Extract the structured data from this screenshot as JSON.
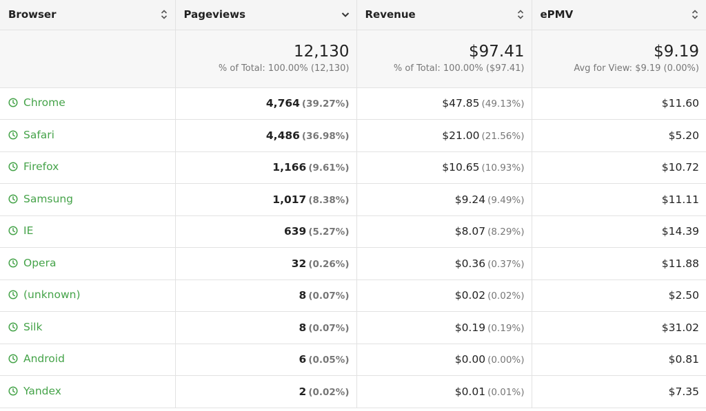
{
  "columns": [
    {
      "label": "Browser",
      "sort": "both"
    },
    {
      "label": "Pageviews",
      "sort": "down"
    },
    {
      "label": "Revenue",
      "sort": "both"
    },
    {
      "label": "ePMV",
      "sort": "both"
    }
  ],
  "totals": {
    "pageviews": {
      "value": "12,130",
      "sub": "% of Total: 100.00% (12,130)"
    },
    "revenue": {
      "value": "$97.41",
      "sub": "% of Total: 100.00% ($97.41)"
    },
    "epmv": {
      "value": "$9.19",
      "sub": "Avg for View: $9.19 (0.00%)"
    }
  },
  "rows": [
    {
      "browser": "Chrome",
      "pageviews": "4,764",
      "pageviews_pct": "(39.27%)",
      "revenue": "$47.85",
      "revenue_pct": "(49.13%)",
      "epmv": "$11.60"
    },
    {
      "browser": "Safari",
      "pageviews": "4,486",
      "pageviews_pct": "(36.98%)",
      "revenue": "$21.00",
      "revenue_pct": "(21.56%)",
      "epmv": "$5.20"
    },
    {
      "browser": "Firefox",
      "pageviews": "1,166",
      "pageviews_pct": "(9.61%)",
      "revenue": "$10.65",
      "revenue_pct": "(10.93%)",
      "epmv": "$10.72"
    },
    {
      "browser": "Samsung",
      "pageviews": "1,017",
      "pageviews_pct": "(8.38%)",
      "revenue": "$9.24",
      "revenue_pct": "(9.49%)",
      "epmv": "$11.11"
    },
    {
      "browser": "IE",
      "pageviews": "639",
      "pageviews_pct": "(5.27%)",
      "revenue": "$8.07",
      "revenue_pct": "(8.29%)",
      "epmv": "$14.39"
    },
    {
      "browser": "Opera",
      "pageviews": "32",
      "pageviews_pct": "(0.26%)",
      "revenue": "$0.36",
      "revenue_pct": "(0.37%)",
      "epmv": "$11.88"
    },
    {
      "browser": "(unknown)",
      "pageviews": "8",
      "pageviews_pct": "(0.07%)",
      "revenue": "$0.02",
      "revenue_pct": "(0.02%)",
      "epmv": "$2.50"
    },
    {
      "browser": "Silk",
      "pageviews": "8",
      "pageviews_pct": "(0.07%)",
      "revenue": "$0.19",
      "revenue_pct": "(0.19%)",
      "epmv": "$31.02"
    },
    {
      "browser": "Android",
      "pageviews": "6",
      "pageviews_pct": "(0.05%)",
      "revenue": "$0.00",
      "revenue_pct": "(0.00%)",
      "epmv": "$0.81"
    },
    {
      "browser": "Yandex",
      "pageviews": "2",
      "pageviews_pct": "(0.02%)",
      "revenue": "$0.01",
      "revenue_pct": "(0.01%)",
      "epmv": "$7.35"
    }
  ],
  "colors": {
    "link": "#45a349",
    "header_bg": "#f5f5f5",
    "border": "#e2e2e2"
  },
  "icons": {
    "row_icon": "clock-icon",
    "sort_both": "sort-both-icon",
    "sort_down": "sort-down-icon"
  }
}
